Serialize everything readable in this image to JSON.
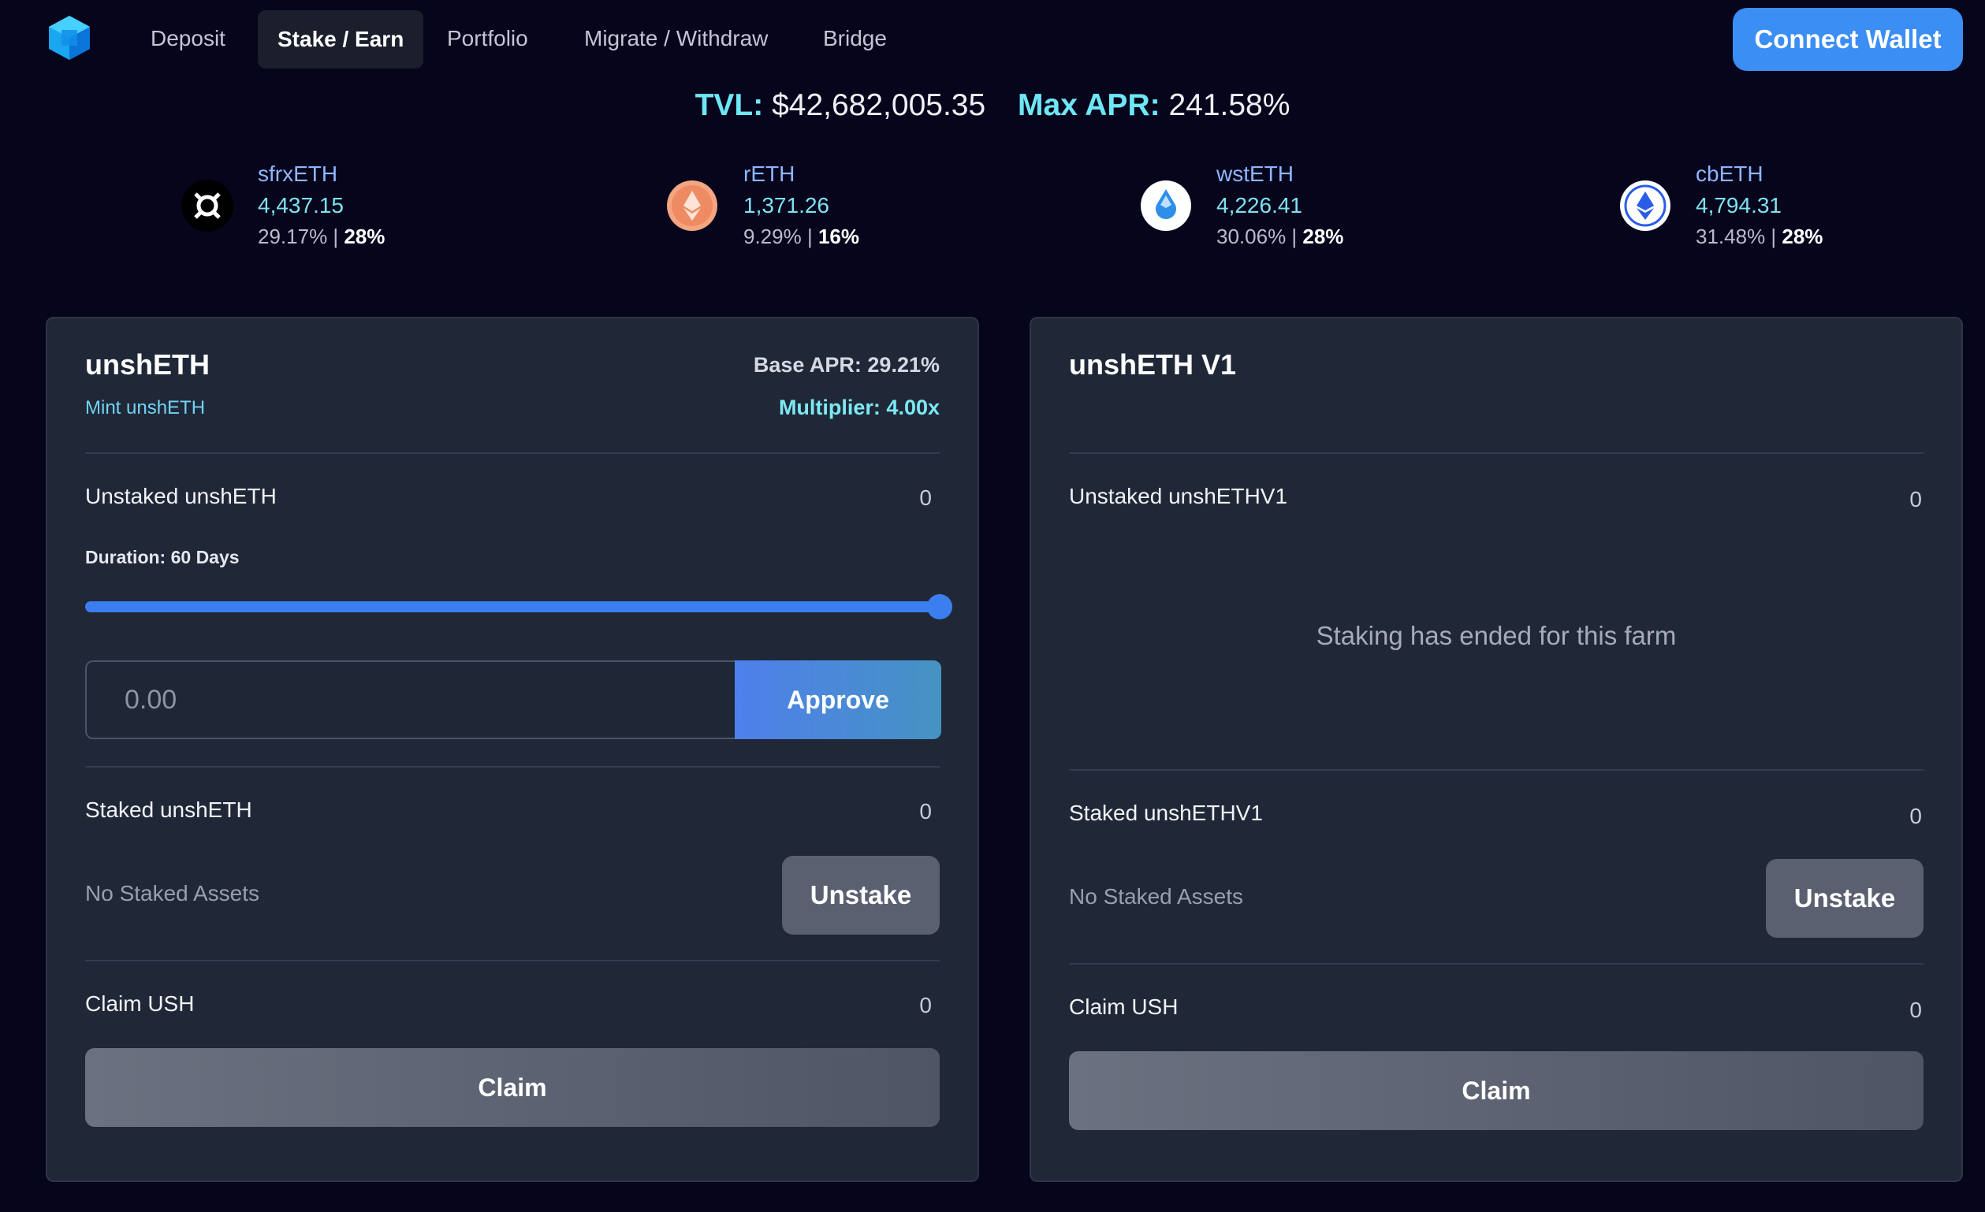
{
  "nav": {
    "items": [
      {
        "label": "Deposit"
      },
      {
        "label": "Stake / Earn",
        "active": true
      },
      {
        "label": "Portfolio"
      },
      {
        "label": "Migrate / Withdraw"
      },
      {
        "label": "Bridge"
      }
    ],
    "connect_wallet": "Connect Wallet",
    "logo_icon": "cube-logo-icon"
  },
  "stats": {
    "tvl_label": "TVL:",
    "tvl_value": "$42,682,005.35",
    "max_apr_label": "Max APR:",
    "max_apr_value": "241.58%"
  },
  "tokens": [
    {
      "name": "sfrxETH",
      "value": "4,437.15",
      "apr": "29.17%",
      "share": "28%",
      "icon": "frax-icon",
      "icon_color": "#000000"
    },
    {
      "name": "rETH",
      "value": "1,371.26",
      "apr": "9.29%",
      "share": "16%",
      "icon": "rocketpool-icon",
      "icon_color": "#f4a582"
    },
    {
      "name": "wstETH",
      "value": "4,226.41",
      "apr": "30.06%",
      "share": "28%",
      "icon": "lido-icon",
      "icon_color": "#ffffff"
    },
    {
      "name": "cbETH",
      "value": "4,794.31",
      "apr": "31.48%",
      "share": "28%",
      "icon": "coinbase-eth-icon",
      "icon_color": "#ffffff"
    }
  ],
  "rate_separator": " | ",
  "panel_left": {
    "title": "unshETH",
    "mint_link": "Mint unshETH",
    "base_apr": "Base APR: 29.21%",
    "multiplier": "Multiplier: 4.00x",
    "unstaked_label": "Unstaked unshETH",
    "unstaked_value": "0",
    "duration": "Duration: 60 Days",
    "slider_fraction": 1.0,
    "amount_placeholder": "0.00",
    "approve": "Approve",
    "staked_label": "Staked unshETH",
    "staked_value": "0",
    "no_staked": "No Staked Assets",
    "unstake": "Unstake",
    "claim_label": "Claim USH",
    "claim_value": "0",
    "claim_button": "Claim"
  },
  "panel_right": {
    "title": "unshETH V1",
    "unstaked_label": "Unstaked unshETHV1",
    "unstaked_value": "0",
    "ended_message": "Staking has ended for this farm",
    "staked_label": "Staked unshETHV1",
    "staked_value": "0",
    "no_staked": "No Staked Assets",
    "unstake": "Unstake",
    "claim_label": "Claim USH",
    "claim_value": "0",
    "claim_button": "Claim"
  },
  "colors": {
    "background": "#06051c",
    "panel": "#202838",
    "accent_blue": "#3b8ef3",
    "accent_cyan": "#6ee7f5"
  }
}
